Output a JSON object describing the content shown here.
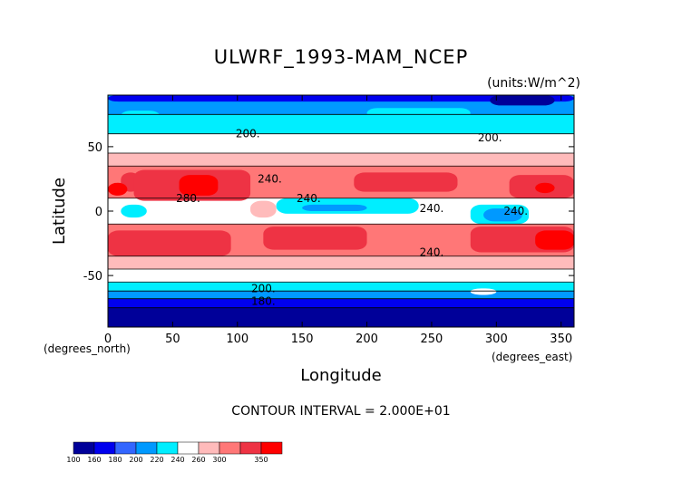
{
  "chart_data": {
    "type": "heatmap",
    "title": "ULWRF_1993-MAM_NCEP",
    "units": "(units:W/m^2)",
    "xlabel": "Longitude",
    "ylabel": "Latitude",
    "x_unit_label": "(degrees_east)",
    "y_unit_label": "(degrees_north)",
    "xlim": [
      0,
      360
    ],
    "ylim": [
      -90,
      90
    ],
    "x_ticks": [
      "0",
      "50",
      "100",
      "150",
      "200",
      "250",
      "300",
      "350"
    ],
    "y_ticks": [
      "50",
      "0",
      "-50"
    ],
    "contour_interval_text": "CONTOUR INTERVAL = 2.000E+01",
    "levels": [
      "100",
      "160",
      "180",
      "200",
      "220",
      "240",
      "260",
      "300",
      "350"
    ],
    "colors": [
      "#000099",
      "#0000ee",
      "#3366ff",
      "#0099ff",
      "#00eeff",
      "#ffffff",
      "#ffbbbb",
      "#ff7777",
      "#ee3344",
      "#ff0000"
    ],
    "bands": [
      {
        "lat": [
          75,
          90
        ],
        "color": "#0099ff"
      },
      {
        "lat": [
          60,
          75
        ],
        "color": "#00eeff"
      },
      {
        "lat": [
          45,
          60
        ],
        "color": "#ffffff"
      },
      {
        "lat": [
          35,
          45
        ],
        "color": "#ffbbbb"
      },
      {
        "lat": [
          10,
          35
        ],
        "color": "#ff7777"
      },
      {
        "lat": [
          -10,
          10
        ],
        "color": "#ffffff"
      },
      {
        "lat": [
          -35,
          -10
        ],
        "color": "#ff7777"
      },
      {
        "lat": [
          -45,
          -35
        ],
        "color": "#ffbbbb"
      },
      {
        "lat": [
          -55,
          -45
        ],
        "color": "#ffffff"
      },
      {
        "lat": [
          -62,
          -55
        ],
        "color": "#00eeff"
      },
      {
        "lat": [
          -68,
          -62
        ],
        "color": "#0099ff"
      },
      {
        "lat": [
          -75,
          -68
        ],
        "color": "#0000ee"
      },
      {
        "lat": [
          -90,
          -75
        ],
        "color": "#000099"
      }
    ],
    "patches": [
      {
        "lon": [
          0,
          360
        ],
        "lat": [
          85,
          90
        ],
        "color": "#0000ee"
      },
      {
        "lon": [
          295,
          345
        ],
        "lat": [
          82,
          90
        ],
        "color": "#000099"
      },
      {
        "lon": [
          10,
          40
        ],
        "lat": [
          70,
          78
        ],
        "color": "#00eeff"
      },
      {
        "lon": [
          140,
          300
        ],
        "lat": [
          62,
          75
        ],
        "color": "#00eeff"
      },
      {
        "lon": [
          200,
          280
        ],
        "lat": [
          72,
          80
        ],
        "color": "#00eeff"
      },
      {
        "lon": [
          10,
          25
        ],
        "lat": [
          15,
          30
        ],
        "color": "#ee3344"
      },
      {
        "lon": [
          20,
          110
        ],
        "lat": [
          8,
          32
        ],
        "color": "#ee3344"
      },
      {
        "lon": [
          55,
          85
        ],
        "lat": [
          12,
          28
        ],
        "color": "#ff0000"
      },
      {
        "lon": [
          0,
          15
        ],
        "lat": [
          12,
          22
        ],
        "color": "#ff0000"
      },
      {
        "lon": [
          190,
          270
        ],
        "lat": [
          15,
          30
        ],
        "color": "#ee3344"
      },
      {
        "lon": [
          310,
          360
        ],
        "lat": [
          10,
          28
        ],
        "color": "#ee3344"
      },
      {
        "lon": [
          330,
          345
        ],
        "lat": [
          14,
          22
        ],
        "color": "#ff0000"
      },
      {
        "lon": [
          130,
          240
        ],
        "lat": [
          -2,
          10
        ],
        "color": "#00eeff"
      },
      {
        "lon": [
          150,
          200
        ],
        "lat": [
          0,
          5
        ],
        "color": "#0099ff"
      },
      {
        "lon": [
          280,
          325
        ],
        "lat": [
          -10,
          5
        ],
        "color": "#00eeff"
      },
      {
        "lon": [
          290,
          320
        ],
        "lat": [
          -8,
          2
        ],
        "color": "#0099ff"
      },
      {
        "lon": [
          10,
          30
        ],
        "lat": [
          -5,
          5
        ],
        "color": "#00eeff"
      },
      {
        "lon": [
          110,
          130
        ],
        "lat": [
          -5,
          8
        ],
        "color": "#ffbbbb"
      },
      {
        "lon": [
          0,
          95
        ],
        "lat": [
          -35,
          -15
        ],
        "color": "#ee3344"
      },
      {
        "lon": [
          120,
          200
        ],
        "lat": [
          -30,
          -12
        ],
        "color": "#ee3344"
      },
      {
        "lon": [
          280,
          360
        ],
        "lat": [
          -32,
          -12
        ],
        "color": "#ee3344"
      },
      {
        "lon": [
          330,
          360
        ],
        "lat": [
          -30,
          -15
        ],
        "color": "#ff0000"
      },
      {
        "lon": [
          280,
          300
        ],
        "lat": [
          -65,
          -60
        ],
        "color": "#ffffff"
      }
    ],
    "contour_labels": [
      {
        "text": "200.",
        "lon": 108,
        "lat": 60
      },
      {
        "text": "200.",
        "lon": 295,
        "lat": 57
      },
      {
        "text": "240.",
        "lon": 125,
        "lat": 25
      },
      {
        "text": "240.",
        "lon": 155,
        "lat": 10
      },
      {
        "text": "280.",
        "lon": 62,
        "lat": 10
      },
      {
        "text": "240.",
        "lon": 250,
        "lat": 2
      },
      {
        "text": "240.",
        "lon": 315,
        "lat": 0
      },
      {
        "text": "240.",
        "lon": 250,
        "lat": -32
      },
      {
        "text": "200.",
        "lon": 120,
        "lat": -60
      },
      {
        "text": "180.",
        "lon": 120,
        "lat": -70
      }
    ]
  }
}
